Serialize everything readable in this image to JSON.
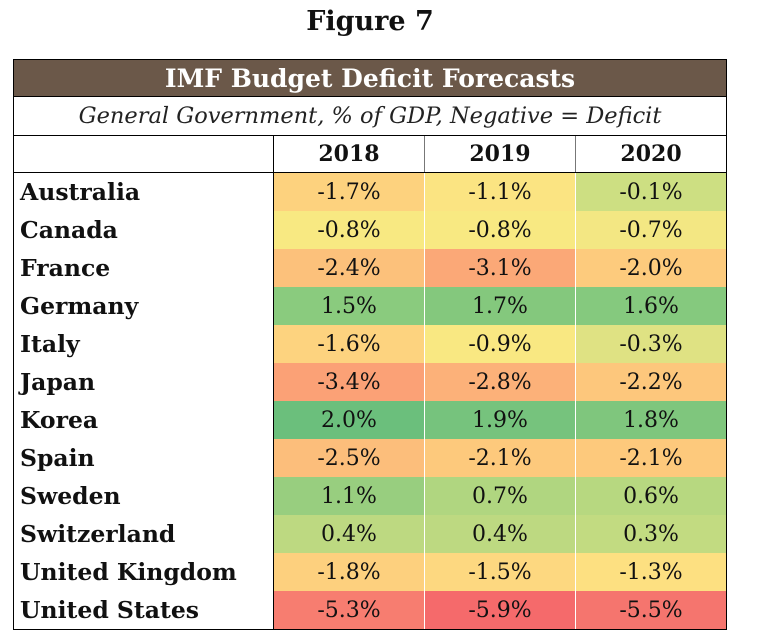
{
  "figure_label": "Figure 7",
  "table": {
    "title": "IMF Budget Deficit Forecasts",
    "subtitle": "General Government, % of GDP, Negative = Deficit",
    "years": [
      "2018",
      "2019",
      "2020"
    ],
    "rows": [
      {
        "country": "Australia",
        "values": [
          "-1.7%",
          "-1.1%",
          "-0.1%"
        ],
        "colors": [
          "#fdd27e",
          "#fbe482",
          "#cddf82"
        ]
      },
      {
        "country": "Canada",
        "values": [
          "-0.8%",
          "-0.8%",
          "-0.7%"
        ],
        "colors": [
          "#f8e982",
          "#f8e982",
          "#f3e783"
        ]
      },
      {
        "country": "France",
        "values": [
          "-2.4%",
          "-3.1%",
          "-2.0%"
        ],
        "colors": [
          "#fcc17b",
          "#fba877",
          "#fdcb7d"
        ]
      },
      {
        "country": "Germany",
        "values": [
          "1.5%",
          "1.7%",
          "1.6%"
        ],
        "colors": [
          "#8acb7e",
          "#84c87d",
          "#85c97e"
        ]
      },
      {
        "country": "Italy",
        "values": [
          "-1.6%",
          "-0.9%",
          "-0.3%"
        ],
        "colors": [
          "#fdd37f",
          "#f9e882",
          "#dfe283"
        ]
      },
      {
        "country": "Japan",
        "values": [
          "-3.4%",
          "-2.8%",
          "-2.2%"
        ],
        "colors": [
          "#fba176",
          "#fcb179",
          "#fdc77c"
        ]
      },
      {
        "country": "Korea",
        "values": [
          "2.0%",
          "1.9%",
          "1.8%"
        ],
        "colors": [
          "#6bbf7c",
          "#76c37d",
          "#7fc67d"
        ]
      },
      {
        "country": "Spain",
        "values": [
          "-2.5%",
          "-2.1%",
          "-2.1%"
        ],
        "colors": [
          "#fcbe7b",
          "#fdc97c",
          "#fdc97c"
        ]
      },
      {
        "country": "Sweden",
        "values": [
          "1.1%",
          "0.7%",
          "0.6%"
        ],
        "colors": [
          "#98ce7f",
          "#b0d680",
          "#b7d880"
        ]
      },
      {
        "country": "Switzerland",
        "values": [
          "0.4%",
          "0.4%",
          "0.3%"
        ],
        "colors": [
          "#bdd981",
          "#bdd981",
          "#c2db81"
        ]
      },
      {
        "country": "United Kingdom",
        "values": [
          "-1.8%",
          "-1.5%",
          "-1.3%"
        ],
        "colors": [
          "#fdd07e",
          "#fdd880",
          "#fde081"
        ]
      },
      {
        "country": "United States",
        "values": [
          "-5.3%",
          "-5.9%",
          "-5.5%"
        ],
        "colors": [
          "#f77d70",
          "#f56a6b",
          "#f5756e"
        ]
      }
    ]
  }
}
